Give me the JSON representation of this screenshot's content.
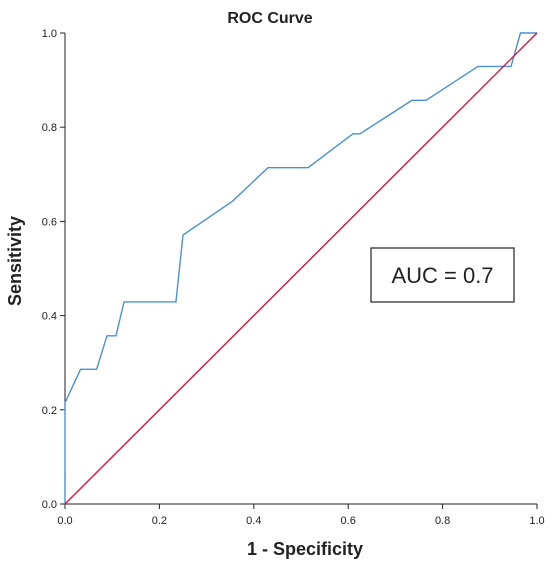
{
  "chart_data": {
    "type": "line",
    "title": "ROC Curve",
    "xlabel": "1 - Specificity",
    "ylabel": "Sensitivity",
    "xlim": [
      0.0,
      1.0
    ],
    "ylim": [
      0.0,
      1.0
    ],
    "xticks": [
      "0.0",
      "0.2",
      "0.4",
      "0.6",
      "0.8",
      "1.0"
    ],
    "yticks": [
      "0.0",
      "0.2",
      "0.4",
      "0.6",
      "0.8",
      "1.0"
    ],
    "grid": false,
    "annotation": "AUC = 0.7",
    "series": [
      {
        "color": "#4a90d9",
        "x": [
          0.0,
          0.0,
          0.033,
          0.067,
          0.089,
          0.108,
          0.125,
          0.235,
          0.25,
          0.355,
          0.43,
          0.515,
          0.61,
          0.625,
          0.735,
          0.765,
          0.875,
          0.945,
          0.965,
          1.0
        ],
        "y": [
          0.0,
          0.215,
          0.286,
          0.286,
          0.357,
          0.357,
          0.429,
          0.429,
          0.571,
          0.643,
          0.714,
          0.714,
          0.786,
          0.786,
          0.857,
          0.857,
          0.929,
          0.929,
          1.0,
          1.0
        ]
      },
      {
        "color": "#e0103a",
        "x": [
          0.0,
          1.0
        ],
        "y": [
          0.0,
          1.0
        ]
      }
    ]
  }
}
